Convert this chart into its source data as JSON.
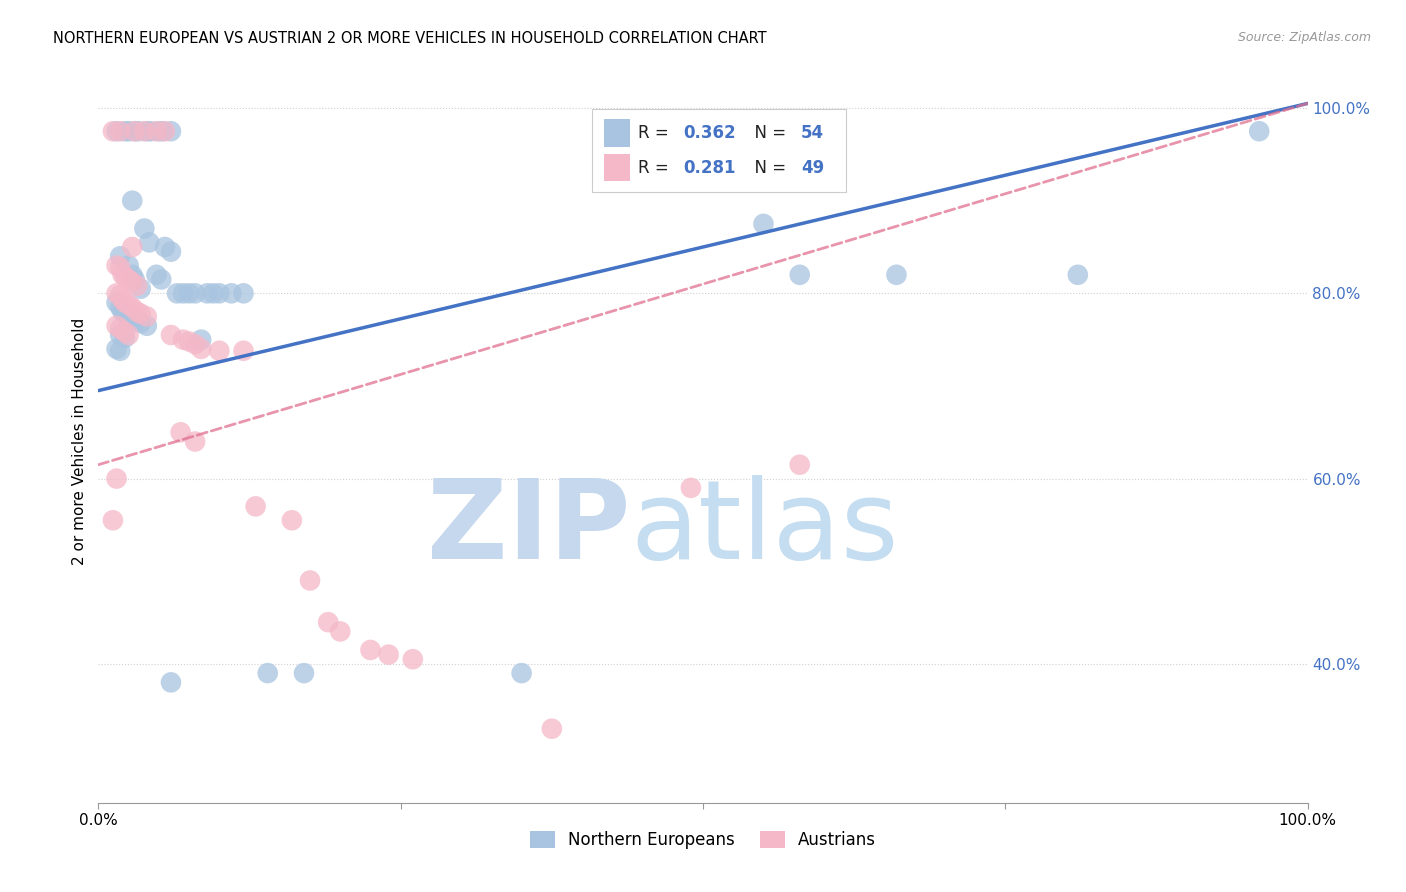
{
  "title": "NORTHERN EUROPEAN VS AUSTRIAN 2 OR MORE VEHICLES IN HOUSEHOLD CORRELATION CHART",
  "source": "Source: ZipAtlas.com",
  "ylabel": "2 or more Vehicles in Household",
  "xmin": 0.0,
  "xmax": 1.0,
  "ymin": 0.25,
  "ymax": 1.03,
  "r_blue": 0.362,
  "n_blue": 54,
  "r_pink": 0.281,
  "n_pink": 49,
  "blue_color": "#a8c4e0",
  "blue_line_color": "#4472c4",
  "pink_color": "#f4b8c8",
  "pink_line_color": "#e07090",
  "blue_line_y0": 0.695,
  "blue_line_y1": 1.005,
  "pink_line_y0": 0.615,
  "pink_line_y1": 1.005,
  "yticks": [
    0.4,
    0.6,
    0.8,
    1.0
  ],
  "ytick_labels": [
    "40.0%",
    "60.0%",
    "80.0%",
    "100.0%"
  ],
  "blue_scatter": [
    [
      0.015,
      0.975
    ],
    [
      0.022,
      0.975
    ],
    [
      0.025,
      0.975
    ],
    [
      0.03,
      0.975
    ],
    [
      0.033,
      0.975
    ],
    [
      0.04,
      0.975
    ],
    [
      0.043,
      0.975
    ],
    [
      0.05,
      0.975
    ],
    [
      0.053,
      0.975
    ],
    [
      0.06,
      0.975
    ],
    [
      0.028,
      0.9
    ],
    [
      0.038,
      0.87
    ],
    [
      0.042,
      0.855
    ],
    [
      0.055,
      0.85
    ],
    [
      0.06,
      0.845
    ],
    [
      0.018,
      0.84
    ],
    [
      0.025,
      0.83
    ],
    [
      0.028,
      0.82
    ],
    [
      0.03,
      0.815
    ],
    [
      0.048,
      0.82
    ],
    [
      0.052,
      0.815
    ],
    [
      0.035,
      0.805
    ],
    [
      0.065,
      0.8
    ],
    [
      0.07,
      0.8
    ],
    [
      0.075,
      0.8
    ],
    [
      0.08,
      0.8
    ],
    [
      0.09,
      0.8
    ],
    [
      0.095,
      0.8
    ],
    [
      0.1,
      0.8
    ],
    [
      0.11,
      0.8
    ],
    [
      0.12,
      0.8
    ],
    [
      0.015,
      0.79
    ],
    [
      0.018,
      0.785
    ],
    [
      0.02,
      0.78
    ],
    [
      0.022,
      0.778
    ],
    [
      0.025,
      0.775
    ],
    [
      0.028,
      0.772
    ],
    [
      0.032,
      0.77
    ],
    [
      0.035,
      0.768
    ],
    [
      0.04,
      0.765
    ],
    [
      0.018,
      0.755
    ],
    [
      0.022,
      0.752
    ],
    [
      0.085,
      0.75
    ],
    [
      0.015,
      0.74
    ],
    [
      0.018,
      0.738
    ],
    [
      0.14,
      0.39
    ],
    [
      0.17,
      0.39
    ],
    [
      0.55,
      0.875
    ],
    [
      0.58,
      0.82
    ],
    [
      0.66,
      0.82
    ],
    [
      0.81,
      0.82
    ],
    [
      0.96,
      0.975
    ],
    [
      0.06,
      0.38
    ],
    [
      0.35,
      0.39
    ]
  ],
  "pink_scatter": [
    [
      0.012,
      0.975
    ],
    [
      0.018,
      0.975
    ],
    [
      0.03,
      0.975
    ],
    [
      0.038,
      0.975
    ],
    [
      0.048,
      0.975
    ],
    [
      0.055,
      0.975
    ],
    [
      0.028,
      0.85
    ],
    [
      0.015,
      0.83
    ],
    [
      0.018,
      0.828
    ],
    [
      0.02,
      0.82
    ],
    [
      0.022,
      0.818
    ],
    [
      0.025,
      0.815
    ],
    [
      0.028,
      0.812
    ],
    [
      0.032,
      0.808
    ],
    [
      0.015,
      0.8
    ],
    [
      0.018,
      0.798
    ],
    [
      0.02,
      0.793
    ],
    [
      0.022,
      0.79
    ],
    [
      0.025,
      0.788
    ],
    [
      0.028,
      0.785
    ],
    [
      0.032,
      0.78
    ],
    [
      0.035,
      0.778
    ],
    [
      0.04,
      0.775
    ],
    [
      0.015,
      0.765
    ],
    [
      0.018,
      0.762
    ],
    [
      0.022,
      0.758
    ],
    [
      0.025,
      0.755
    ],
    [
      0.06,
      0.755
    ],
    [
      0.07,
      0.75
    ],
    [
      0.075,
      0.748
    ],
    [
      0.08,
      0.745
    ],
    [
      0.085,
      0.74
    ],
    [
      0.1,
      0.738
    ],
    [
      0.12,
      0.738
    ],
    [
      0.068,
      0.65
    ],
    [
      0.08,
      0.64
    ],
    [
      0.13,
      0.57
    ],
    [
      0.16,
      0.555
    ],
    [
      0.175,
      0.49
    ],
    [
      0.19,
      0.445
    ],
    [
      0.2,
      0.435
    ],
    [
      0.225,
      0.415
    ],
    [
      0.24,
      0.41
    ],
    [
      0.26,
      0.405
    ],
    [
      0.015,
      0.6
    ],
    [
      0.375,
      0.33
    ],
    [
      0.49,
      0.59
    ],
    [
      0.58,
      0.615
    ],
    [
      0.012,
      0.555
    ]
  ]
}
